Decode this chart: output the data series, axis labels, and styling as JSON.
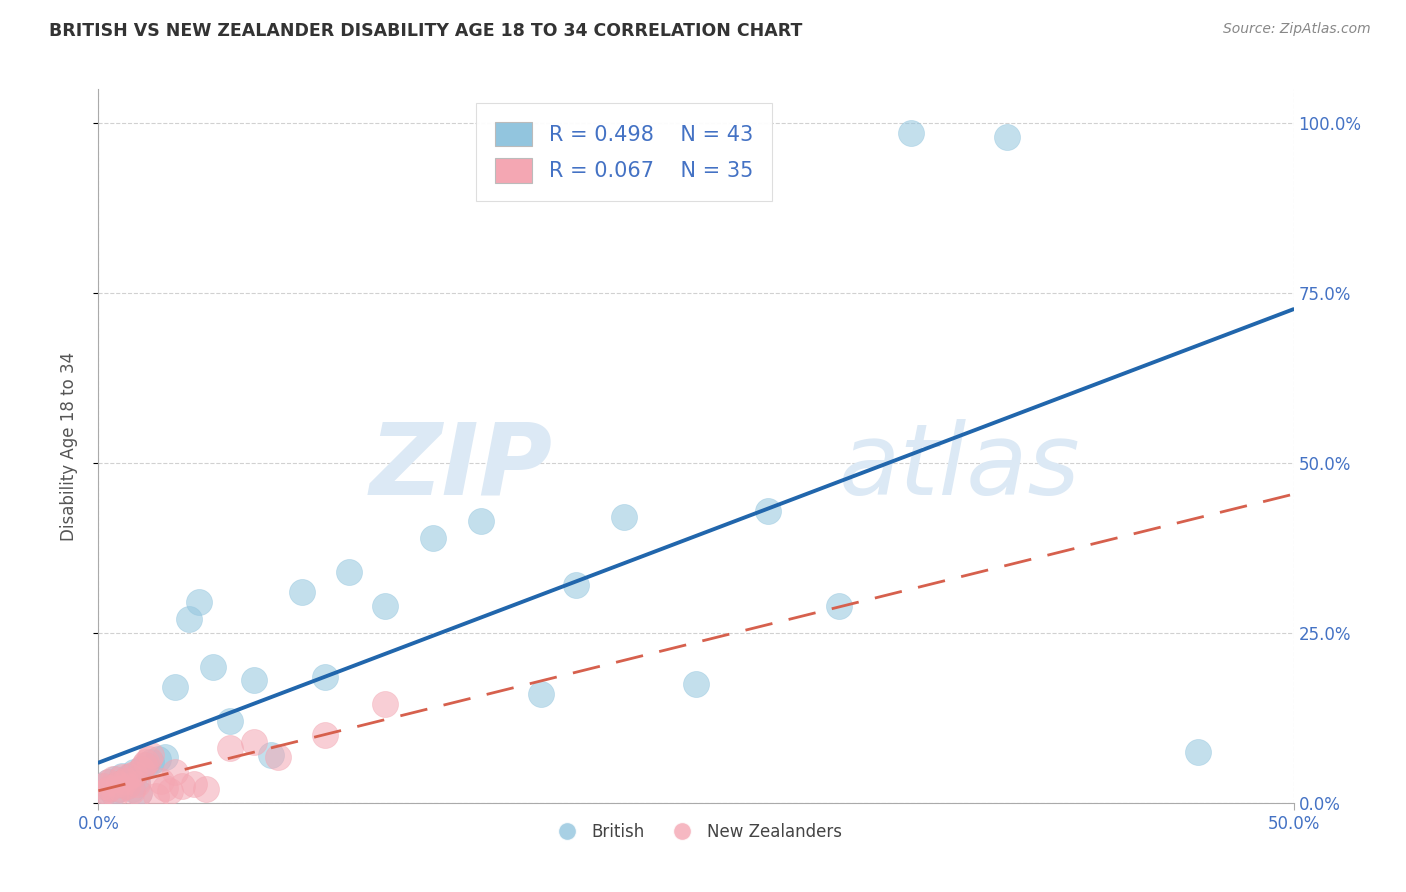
{
  "title": "BRITISH VS NEW ZEALANDER DISABILITY AGE 18 TO 34 CORRELATION CHART",
  "source": "Source: ZipAtlas.com",
  "ylabel_label": "Disability Age 18 to 34",
  "xlim": [
    0.0,
    0.5
  ],
  "ylim": [
    0.0,
    1.05
  ],
  "xticks": [
    0.0,
    0.5
  ],
  "yticks": [
    0.0,
    0.25,
    0.5,
    0.75,
    1.0
  ],
  "ytick_labels": [
    "0.0%",
    "25.0%",
    "50.0%",
    "75.0%",
    "100.0%"
  ],
  "xtick_labels": [
    "0.0%",
    "50.0%"
  ],
  "british_R": 0.498,
  "british_N": 43,
  "nz_R": 0.067,
  "nz_N": 35,
  "british_color": "#92c5de",
  "nz_color": "#f4a7b3",
  "trendline_british_color": "#2166ac",
  "trendline_nz_color": "#d6604d",
  "grid_color": "#cccccc",
  "tick_color": "#4472c4",
  "title_color": "#333333",
  "source_color": "#888888",
  "ylabel_color": "#555555",
  "watermark_color": "#dce9f5",
  "british_x": [
    0.002,
    0.003,
    0.004,
    0.005,
    0.006,
    0.007,
    0.008,
    0.009,
    0.01,
    0.011,
    0.012,
    0.013,
    0.014,
    0.015,
    0.016,
    0.017,
    0.018,
    0.02,
    0.022,
    0.025,
    0.028,
    0.032,
    0.038,
    0.042,
    0.048,
    0.055,
    0.065,
    0.072,
    0.085,
    0.095,
    0.105,
    0.12,
    0.14,
    0.16,
    0.185,
    0.2,
    0.22,
    0.25,
    0.28,
    0.31,
    0.34,
    0.38,
    0.46
  ],
  "british_y": [
    0.025,
    0.018,
    0.03,
    0.022,
    0.015,
    0.035,
    0.02,
    0.028,
    0.04,
    0.032,
    0.025,
    0.038,
    0.02,
    0.045,
    0.03,
    0.015,
    0.05,
    0.055,
    0.06,
    0.065,
    0.068,
    0.17,
    0.27,
    0.295,
    0.2,
    0.12,
    0.18,
    0.07,
    0.31,
    0.185,
    0.34,
    0.29,
    0.39,
    0.415,
    0.16,
    0.32,
    0.42,
    0.175,
    0.43,
    0.29,
    0.985,
    0.98,
    0.075
  ],
  "nz_x": [
    0.001,
    0.002,
    0.003,
    0.004,
    0.005,
    0.006,
    0.007,
    0.008,
    0.009,
    0.01,
    0.011,
    0.012,
    0.013,
    0.014,
    0.015,
    0.016,
    0.017,
    0.018,
    0.019,
    0.02,
    0.021,
    0.022,
    0.024,
    0.026,
    0.028,
    0.03,
    0.032,
    0.035,
    0.04,
    0.045,
    0.055,
    0.065,
    0.075,
    0.095,
    0.12
  ],
  "nz_y": [
    0.015,
    0.025,
    0.018,
    0.03,
    0.022,
    0.035,
    0.012,
    0.028,
    0.02,
    0.038,
    0.032,
    0.025,
    0.04,
    0.018,
    0.042,
    0.028,
    0.015,
    0.05,
    0.055,
    0.06,
    0.065,
    0.07,
    0.01,
    0.032,
    0.022,
    0.018,
    0.045,
    0.025,
    0.028,
    0.02,
    0.08,
    0.09,
    0.068,
    0.1,
    0.145
  ]
}
